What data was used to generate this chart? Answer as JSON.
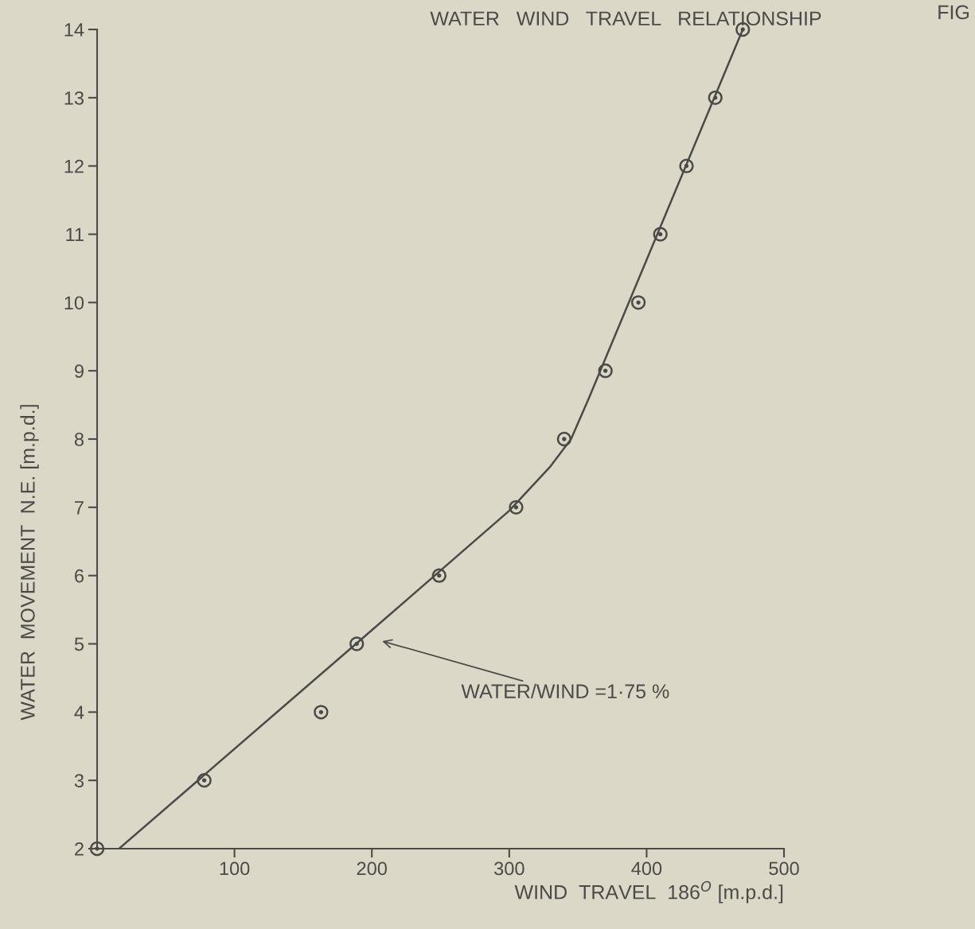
{
  "chart_data": {
    "type": "scatter",
    "title": "WATER   WIND   TRAVEL   RELATIONSHIP",
    "xlabel": "WIND  TRAVEL  186$^{O}$ [m.p.d.]",
    "ylabel": "WATER  MOVEMENT  N.E. [m.p.d.]",
    "x": [
      0,
      78,
      163,
      189,
      249,
      305,
      340,
      370,
      394,
      410,
      429,
      450,
      470
    ],
    "series": [
      {
        "color": "#4a4a48",
        "marker": "circle",
        "values": [
          2,
          3,
          4,
          5,
          6,
          7,
          8,
          9,
          10,
          11,
          12,
          13,
          14
        ]
      },
      {
        "type": "line",
        "color": "#4a4a48",
        "line_style": "solid",
        "x": [
          16,
          200,
          300,
          330,
          345,
          358,
          470
        ],
        "values": [
          2,
          5.2,
          6.95,
          7.6,
          8.0,
          8.6,
          14
        ]
      }
    ],
    "annotations": [
      "WATER/WIND =1·75 %",
      "FIG"
    ],
    "xlim": [
      0,
      500
    ],
    "ylim": [
      2,
      14
    ],
    "xticks": [
      100,
      200,
      300,
      400,
      500
    ],
    "yticks": [
      2,
      3,
      4,
      5,
      6,
      7,
      8,
      9,
      10,
      11,
      12,
      13,
      14
    ],
    "grid": false,
    "legend": false
  }
}
